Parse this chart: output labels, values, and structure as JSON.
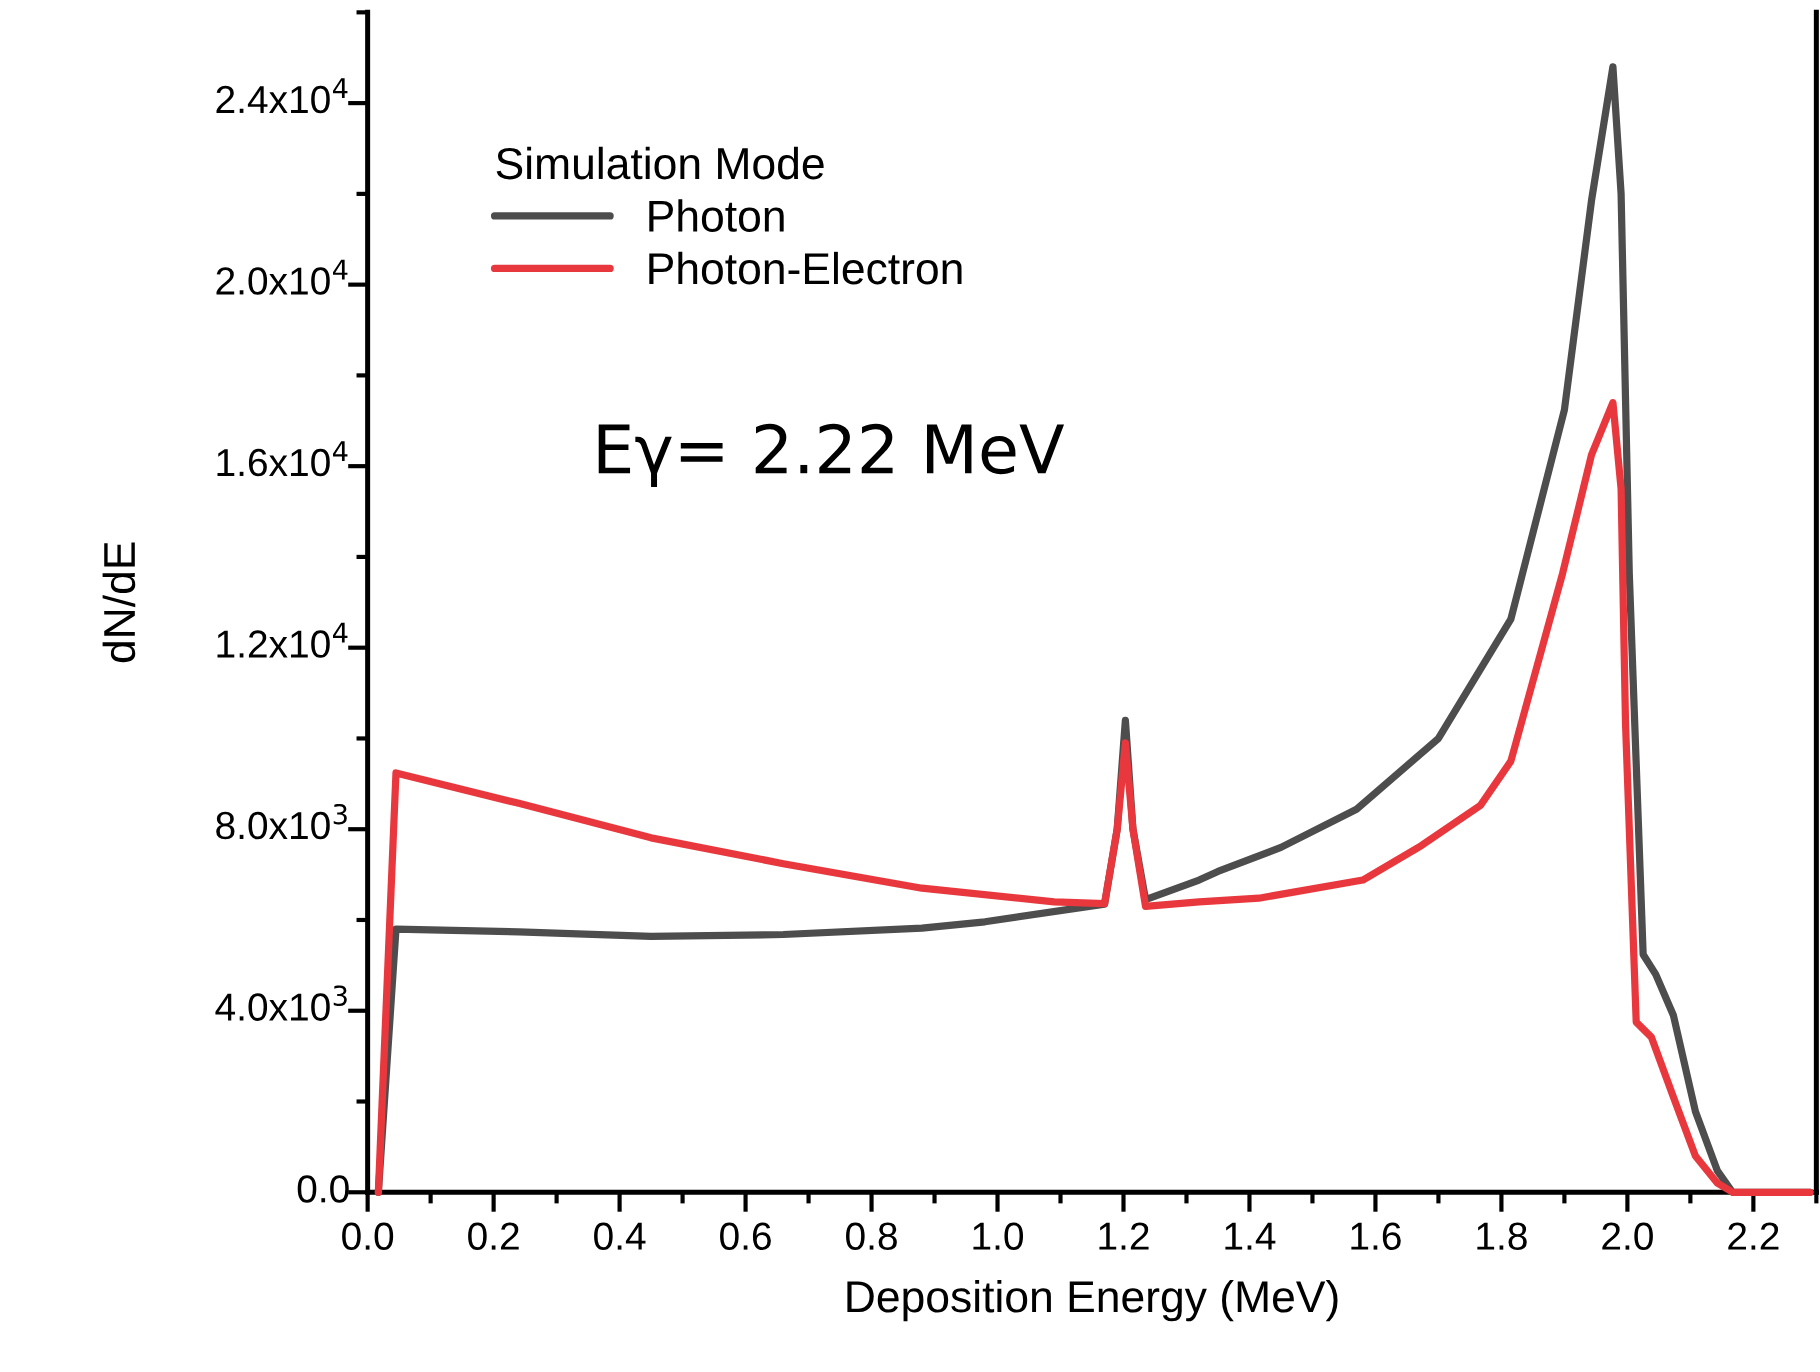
{
  "chart_data": {
    "type": "line",
    "xlabel": "Deposition Energy (MeV)",
    "ylabel": "dN/dE",
    "legend_title": "Simulation Mode",
    "legend": "top left",
    "grid": false,
    "marker": "none",
    "line_style": "solid",
    "annotations": [
      "Eγ= 2.22 MeV"
    ],
    "xlim": [
      0,
      2.3
    ],
    "xticks": [
      {
        "value": 0,
        "label": "0.0"
      },
      0.2,
      0.4,
      0.6,
      0.8,
      {
        "value": 1,
        "label": "1.0"
      },
      1.2,
      1.4,
      1.6,
      1.8,
      {
        "value": 2,
        "label": "2.0"
      },
      2.2
    ],
    "ylim": [
      0,
      26000
    ],
    "yticks": [
      {
        "value": 0,
        "label": "0.0"
      },
      {
        "value": 4000,
        "label": "4.0x10$^{3}$"
      },
      {
        "value": 8000,
        "label": "8.0x10$^{3}$"
      },
      {
        "value": 12000,
        "label": "1.2x10$^{4}$"
      },
      {
        "value": 16000,
        "label": "1.6x10$^{4}$"
      },
      {
        "value": 20000,
        "label": "2.0x10$^{4}$"
      },
      {
        "value": 24000,
        "label": "2.4x10$^{4}$"
      }
    ],
    "series": [
      {
        "name": "Photon",
        "color": "#4d4d4d",
        "x": [
          0.017,
          0.045,
          0.24,
          0.45,
          0.66,
          0.88,
          0.98,
          1.17,
          1.19,
          1.203,
          1.215,
          1.235,
          1.32,
          1.35,
          1.45,
          1.57,
          1.7,
          1.815,
          1.9,
          1.943,
          1.977,
          1.99,
          2.003,
          2.025,
          2.045,
          2.073,
          2.108,
          2.143,
          2.167,
          2.29
        ],
        "values": [
          0,
          5800,
          5740,
          5640,
          5680,
          5820,
          5960,
          6350,
          8000,
          10400,
          8000,
          6450,
          6880,
          7070,
          7600,
          8440,
          10000,
          12630,
          17240,
          21850,
          24800,
          22000,
          13630,
          5240,
          4800,
          3900,
          1780,
          470,
          0,
          0
        ]
      },
      {
        "name": "Photon-Electron",
        "color": "#e8383d",
        "x": [
          0.017,
          0.045,
          0.24,
          0.45,
          0.66,
          0.88,
          1.09,
          1.17,
          1.19,
          1.203,
          1.215,
          1.235,
          1.32,
          1.415,
          1.58,
          1.673,
          1.767,
          1.815,
          1.897,
          1.943,
          1.977,
          1.99,
          1.997,
          2.014,
          2.038,
          2.073,
          2.108,
          2.143,
          2.167,
          2.29
        ],
        "values": [
          0,
          9240,
          8570,
          7810,
          7240,
          6700,
          6400,
          6360,
          8000,
          9900,
          8000,
          6300,
          6400,
          6480,
          6880,
          7640,
          8530,
          9500,
          13630,
          16250,
          17400,
          15500,
          10340,
          3750,
          3420,
          2100,
          800,
          200,
          0,
          0
        ]
      }
    ]
  }
}
